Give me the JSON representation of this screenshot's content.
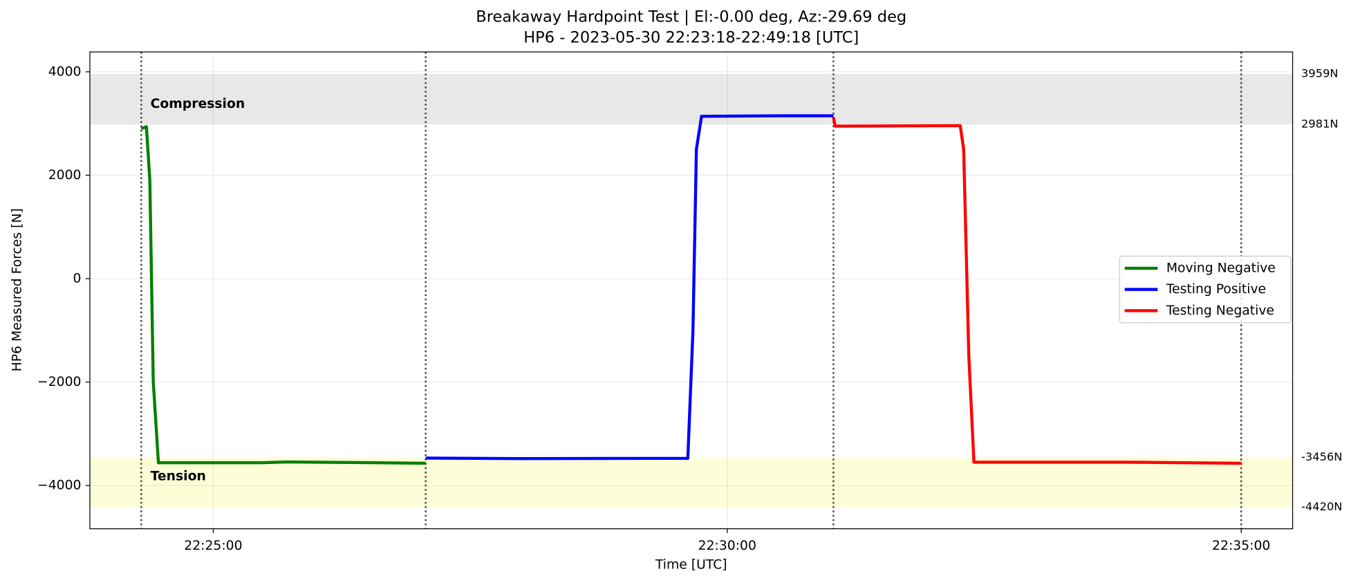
{
  "chart_data": {
    "type": "line",
    "title": "Breakaway Hardpoint Test | El:-0.00 deg, Az:-29.69 deg",
    "subtitle": "HP6 - 2023-05-30 22:23:18-22:49:18 [UTC]",
    "xlabel": "Time [UTC]",
    "ylabel": "HP6 Measured Forces [N]",
    "xlim": [
      "22:23:48",
      "22:35:30"
    ],
    "xticks": [
      "22:25:00",
      "22:30:00",
      "22:35:00"
    ],
    "ylim": [
      -4837,
      4385
    ],
    "yticks": [
      {
        "value": 4000,
        "label": "4000"
      },
      {
        "value": 2000,
        "label": "2000"
      },
      0,
      {
        "value": -2000,
        "label": "−2000"
      },
      {
        "value": -4000,
        "label": "−4000"
      }
    ],
    "grid": true,
    "legend": "right",
    "bands": [
      {
        "range": [
          3959,
          2981
        ],
        "range_labels": [
          "3959N",
          "2981N"
        ],
        "color": "#e8e8e8",
        "annotation": "Compression"
      },
      {
        "range": [
          -3456,
          -4420
        ],
        "range_labels": [
          "-3456N",
          "-4420N"
        ],
        "color": "#fdfdd8",
        "annotation": "Tension"
      }
    ],
    "vlines": [
      "22:24:18",
      "22:27:04",
      "22:31:02",
      "22:35:00"
    ],
    "series": [
      {
        "name": "Moving Negative",
        "color": "#008000",
        "x": [
          "22:24:18",
          "22:24:21",
          "22:24:23",
          "22:24:25",
          "22:24:28",
          "22:25:28",
          "22:25:43",
          "22:26:18",
          "22:27:04"
        ],
        "values": [
          2900,
          2940,
          1900,
          -2000,
          -3560,
          -3560,
          -3545,
          -3555,
          -3570
        ]
      },
      {
        "name": "Testing Positive",
        "color": "#0000ff",
        "x": [
          "22:27:04",
          "22:27:59",
          "22:29:37",
          "22:29:40",
          "22:29:42",
          "22:29:45",
          "22:30:30",
          "22:31:02"
        ],
        "values": [
          -3470,
          -3480,
          -3475,
          -1000,
          2500,
          3140,
          3150,
          3150
        ]
      },
      {
        "name": "Testing Negative",
        "color": "#ff0000",
        "x": [
          "22:31:02",
          "22:31:03",
          "22:32:16",
          "22:32:18",
          "22:32:21",
          "22:32:24",
          "22:33:53",
          "22:35:00"
        ],
        "values": [
          3120,
          2950,
          2960,
          2500,
          -1500,
          -3550,
          -3550,
          -3570
        ]
      }
    ]
  }
}
